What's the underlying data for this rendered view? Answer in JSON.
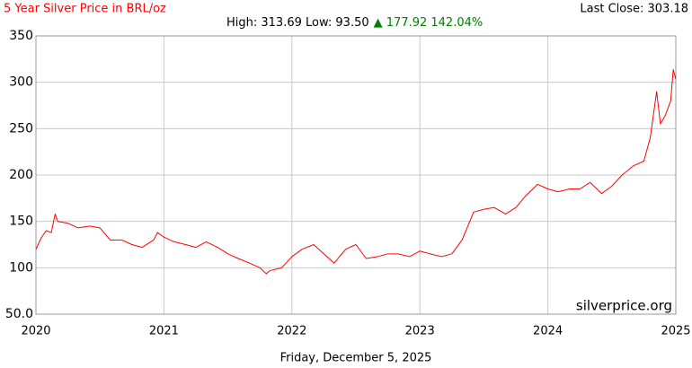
{
  "chart_data": {
    "type": "line",
    "title": "5 Year Silver Price in BRL/oz",
    "last_close": "Last Close: 303.18",
    "high_low": "High: 313.69 Low: 93.50",
    "change": "▲ 177.92 142.04%",
    "watermark": "silverprice.org",
    "date": "Friday, December 5, 2025",
    "xlim": [
      2020,
      2025
    ],
    "xticks": [
      2020,
      2021,
      2022,
      2023,
      2024,
      2025
    ],
    "ylim": [
      50,
      350
    ],
    "yticks": [
      {
        "value": 50,
        "label": "50.0"
      },
      100,
      150,
      200,
      250,
      300,
      350
    ],
    "grid": true,
    "series": [
      {
        "name": "Silver Price BRL/oz",
        "color": "#ff0000",
        "x": [
          2020.0,
          2020.04,
          2020.08,
          2020.12,
          2020.15,
          2020.17,
          2020.25,
          2020.33,
          2020.42,
          2020.5,
          2020.58,
          2020.67,
          2020.75,
          2020.83,
          2020.92,
          2020.95,
          2021.0,
          2021.08,
          2021.17,
          2021.25,
          2021.33,
          2021.42,
          2021.5,
          2021.58,
          2021.67,
          2021.75,
          2021.8,
          2021.83,
          2021.92,
          2022.0,
          2022.08,
          2022.17,
          2022.25,
          2022.33,
          2022.42,
          2022.5,
          2022.58,
          2022.67,
          2022.75,
          2022.83,
          2022.92,
          2023.0,
          2023.08,
          2023.17,
          2023.25,
          2023.33,
          2023.42,
          2023.5,
          2023.58,
          2023.67,
          2023.75,
          2023.83,
          2023.92,
          2024.0,
          2024.08,
          2024.17,
          2024.25,
          2024.33,
          2024.42,
          2024.5,
          2024.58,
          2024.67,
          2024.75,
          2024.8,
          2024.85,
          2024.88,
          2024.92,
          2024.96,
          2024.98,
          2025.0
        ],
        "values": [
          120,
          132,
          140,
          138,
          158,
          150,
          148,
          143,
          145,
          143,
          130,
          130,
          125,
          122,
          130,
          138,
          133,
          128,
          125,
          122,
          128,
          122,
          115,
          110,
          105,
          100,
          93.5,
          97,
          100,
          112,
          120,
          125,
          115,
          105,
          120,
          125,
          110,
          112,
          115,
          115,
          112,
          118,
          115,
          112,
          115,
          130,
          160,
          163,
          165,
          158,
          165,
          178,
          190,
          185,
          182,
          185,
          185,
          192,
          180,
          188,
          200,
          210,
          215,
          240,
          290,
          255,
          265,
          280,
          313.69,
          303.18
        ]
      }
    ]
  }
}
